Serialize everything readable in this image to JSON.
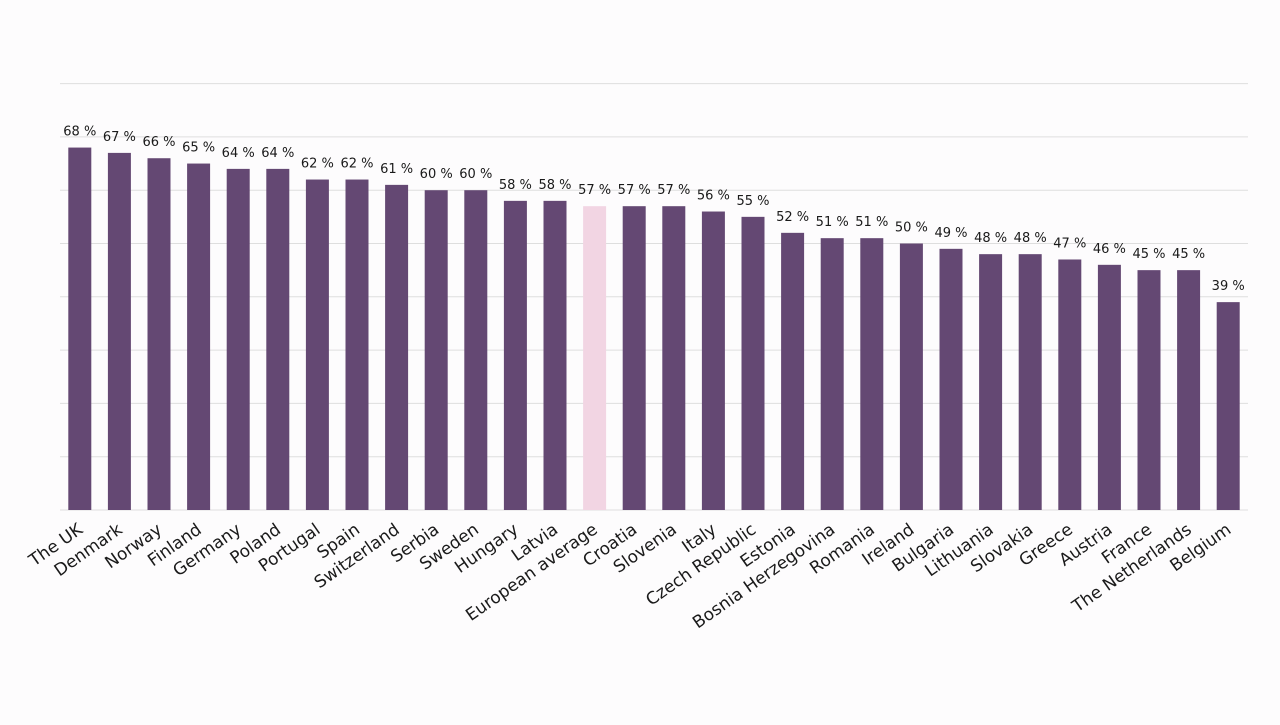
{
  "chart_data": {
    "type": "bar",
    "title": "",
    "xlabel": "",
    "ylabel": "",
    "ylim": [
      0,
      80
    ],
    "grid": true,
    "categories": [
      "The UK",
      "Denmark",
      "Norway",
      "Finland",
      "Germany",
      "Poland",
      "Portugal",
      "Spain",
      "Switzerland",
      "Serbia",
      "Sweden",
      "Hungary",
      "Latvia",
      "European average",
      "Croatia",
      "Slovenia",
      "Italy",
      "Czech Republic",
      "Estonia",
      "Bosnia Herzegovina",
      "Romania",
      "Ireland",
      "Bulgaria",
      "Lithuania",
      "Slovakia",
      "Greece",
      "Austria",
      "France",
      "The Netherlands",
      "Belgium"
    ],
    "values": [
      68,
      67,
      66,
      65,
      64,
      64,
      62,
      62,
      61,
      60,
      60,
      58,
      58,
      57,
      57,
      57,
      56,
      55,
      52,
      51,
      51,
      50,
      49,
      48,
      48,
      47,
      46,
      45,
      45,
      39
    ],
    "value_labels": [
      "68 %",
      "67 %",
      "66 %",
      "65 %",
      "64 %",
      "64 %",
      "62 %",
      "62 %",
      "61 %",
      "60 %",
      "60 %",
      "58 %",
      "58 %",
      "57 %",
      "57 %",
      "57 %",
      "56 %",
      "55 %",
      "52 %",
      "51 %",
      "51 %",
      "50 %",
      "49 %",
      "48 %",
      "48 %",
      "47 %",
      "46 %",
      "45 %",
      "45 %",
      "39 %"
    ],
    "highlight_category": "European average",
    "colors": {
      "bar": "#644873",
      "highlight": "#f2d5e3",
      "grid": "#dedede",
      "text": "#1a1a1a"
    }
  }
}
